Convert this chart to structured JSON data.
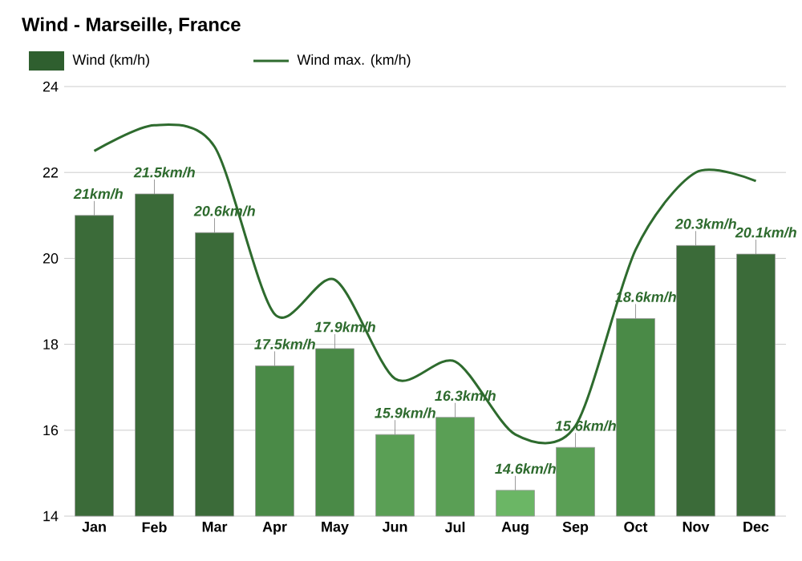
{
  "chart_data": {
    "type": "bar",
    "title": "Wind - Marseille, France",
    "categories": [
      "Jan",
      "Feb",
      "Mar",
      "Apr",
      "May",
      "Jun",
      "Jul",
      "Aug",
      "Sep",
      "Oct",
      "Nov",
      "Dec"
    ],
    "series": [
      {
        "name": "Wind (km/h)",
        "color": "#2f5f2f",
        "colors": [
          "#3b6b39",
          "#3b6b39",
          "#3b6b39",
          "#4a8a47",
          "#4a8a47",
          "#5a9f55",
          "#5a9f55",
          "#6bb665",
          "#5a9f55",
          "#4a8a47",
          "#3b6b39",
          "#3b6b39"
        ],
        "values": [
          21,
          21.5,
          20.6,
          17.5,
          17.9,
          15.9,
          16.3,
          14.6,
          15.6,
          18.6,
          20.3,
          20.1
        ],
        "value_labels": [
          "21km/h",
          "21.5km/h",
          "20.6km/h",
          "17.5km/h",
          "17.9km/h",
          "15.9km/h",
          "16.3km/h",
          "14.6km/h",
          "15.6km/h",
          "18.6km/h",
          "20.3km/h",
          "20.1km/h"
        ]
      },
      {
        "name": "Wind max. (km/h)",
        "type": "line",
        "color": "#2e6b2e",
        "values": [
          22.5,
          23.1,
          22.6,
          18.7,
          19.5,
          17.2,
          17.6,
          15.9,
          16.1,
          20.2,
          22.0,
          21.8
        ]
      }
    ],
    "ylim": [
      14,
      24
    ],
    "yticks": [
      14,
      16,
      18,
      20,
      22,
      24
    ],
    "grid": "y",
    "legend": "top"
  }
}
